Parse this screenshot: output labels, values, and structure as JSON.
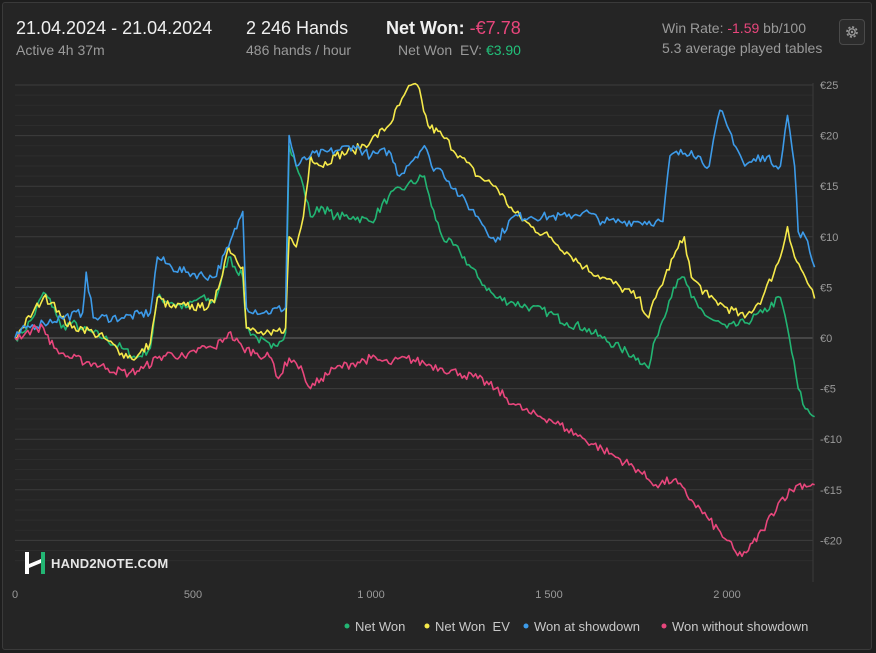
{
  "header": {
    "date_range": "21.04.2024 - 21.04.2024",
    "active_time": "Active 4h 37m",
    "hands_total": "2 246 Hands",
    "hands_rate": "486 hands / hour",
    "net_won_label": "Net Won:",
    "net_won_value": "-€7.78",
    "net_won_ev_label": "Net Won  EV:",
    "net_won_ev_value": "€3.90",
    "win_rate_label": "Win Rate:",
    "win_rate_value": "-1.59",
    "win_rate_unit": "bb/100",
    "avg_tables": "5.3 average played tables"
  },
  "logo": {
    "text": "HAND2NOTE.COM"
  },
  "colors": {
    "net_won": "#22b573",
    "net_won_ev": "#f5e94a",
    "won_at_showdown": "#3d9be9",
    "won_without_showdown": "#e8467c",
    "grid": "#3a3a3a",
    "zero_line": "#5a5a5a"
  },
  "chart_data": {
    "type": "line",
    "title": "",
    "xlabel": "",
    "ylabel": "",
    "xlim": [
      0,
      2246
    ],
    "ylim": [
      -22,
      25
    ],
    "x_ticks": [
      0,
      500,
      1000,
      1500,
      2000
    ],
    "x_tick_labels": [
      "0",
      "500",
      "1 000",
      "1 500",
      "2 000"
    ],
    "y_ticks": [
      25,
      20,
      15,
      10,
      5,
      0,
      -5,
      -10,
      -15,
      -20
    ],
    "y_tick_labels": [
      "€25",
      "€20",
      "€15",
      "€10",
      "€5",
      "€0",
      "-€5",
      "-€10",
      "-€15",
      "-€20"
    ],
    "legend_position": "bottom-right",
    "series": [
      {
        "name": "Net Won",
        "color_key": "net_won",
        "points": [
          [
            0,
            0
          ],
          [
            20,
            0.5
          ],
          [
            50,
            2
          ],
          [
            80,
            4.5
          ],
          [
            110,
            3
          ],
          [
            130,
            1
          ],
          [
            160,
            1.5
          ],
          [
            190,
            0.8
          ],
          [
            220,
            0.5
          ],
          [
            250,
            0
          ],
          [
            300,
            -1
          ],
          [
            340,
            -2
          ],
          [
            380,
            -1
          ],
          [
            400,
            4
          ],
          [
            440,
            3.5
          ],
          [
            480,
            3
          ],
          [
            520,
            4
          ],
          [
            560,
            3.5
          ],
          [
            600,
            8
          ],
          [
            640,
            6
          ],
          [
            650,
            1
          ],
          [
            680,
            0
          ],
          [
            720,
            -1
          ],
          [
            760,
            0.5
          ],
          [
            770,
            19
          ],
          [
            790,
            17
          ],
          [
            810,
            15
          ],
          [
            830,
            12
          ],
          [
            860,
            13
          ],
          [
            900,
            12
          ],
          [
            950,
            12
          ],
          [
            1000,
            11.5
          ],
          [
            1050,
            14
          ],
          [
            1100,
            15
          ],
          [
            1150,
            16
          ],
          [
            1170,
            13
          ],
          [
            1200,
            10
          ],
          [
            1250,
            8.5
          ],
          [
            1300,
            6
          ],
          [
            1350,
            4
          ],
          [
            1400,
            3.5
          ],
          [
            1450,
            3
          ],
          [
            1500,
            2.5
          ],
          [
            1550,
            1.5
          ],
          [
            1600,
            1
          ],
          [
            1650,
            0
          ],
          [
            1700,
            -1
          ],
          [
            1750,
            -2
          ],
          [
            1780,
            -3
          ],
          [
            1800,
            0
          ],
          [
            1850,
            5
          ],
          [
            1880,
            6
          ],
          [
            1900,
            4
          ],
          [
            1920,
            3
          ],
          [
            1950,
            2
          ],
          [
            2000,
            1
          ],
          [
            2050,
            1.5
          ],
          [
            2100,
            2.5
          ],
          [
            2150,
            4
          ],
          [
            2170,
            1
          ],
          [
            2200,
            -5
          ],
          [
            2220,
            -7
          ],
          [
            2246,
            -7.78
          ]
        ]
      },
      {
        "name": "Net Won  EV",
        "color_key": "net_won_ev",
        "points": [
          [
            0,
            0
          ],
          [
            20,
            1
          ],
          [
            50,
            2.5
          ],
          [
            80,
            4
          ],
          [
            110,
            3.5
          ],
          [
            130,
            2
          ],
          [
            160,
            1
          ],
          [
            190,
            1
          ],
          [
            220,
            0.5
          ],
          [
            250,
            0
          ],
          [
            300,
            -1.5
          ],
          [
            340,
            -2
          ],
          [
            380,
            -0.5
          ],
          [
            400,
            4
          ],
          [
            440,
            3
          ],
          [
            480,
            3.2
          ],
          [
            520,
            3
          ],
          [
            560,
            3.5
          ],
          [
            600,
            9
          ],
          [
            640,
            7
          ],
          [
            650,
            1
          ],
          [
            680,
            0.5
          ],
          [
            720,
            0.3
          ],
          [
            760,
            1
          ],
          [
            770,
            10
          ],
          [
            790,
            9
          ],
          [
            810,
            12
          ],
          [
            830,
            18
          ],
          [
            860,
            17
          ],
          [
            900,
            18
          ],
          [
            950,
            18.5
          ],
          [
            1000,
            19.5
          ],
          [
            1050,
            21
          ],
          [
            1080,
            23
          ],
          [
            1100,
            24.5
          ],
          [
            1130,
            25
          ],
          [
            1160,
            21
          ],
          [
            1200,
            20
          ],
          [
            1250,
            18
          ],
          [
            1300,
            16
          ],
          [
            1350,
            15
          ],
          [
            1400,
            12.5
          ],
          [
            1450,
            11
          ],
          [
            1500,
            10
          ],
          [
            1550,
            8.5
          ],
          [
            1600,
            7
          ],
          [
            1650,
            6
          ],
          [
            1700,
            5
          ],
          [
            1750,
            4
          ],
          [
            1780,
            2
          ],
          [
            1800,
            4
          ],
          [
            1850,
            8
          ],
          [
            1880,
            10
          ],
          [
            1900,
            6
          ],
          [
            1950,
            4
          ],
          [
            2000,
            3
          ],
          [
            2050,
            2
          ],
          [
            2100,
            4
          ],
          [
            2150,
            8
          ],
          [
            2170,
            11
          ],
          [
            2190,
            8
          ],
          [
            2220,
            6
          ],
          [
            2246,
            3.9
          ]
        ]
      },
      {
        "name": "Won at showdown",
        "color_key": "won_at_showdown",
        "points": [
          [
            0,
            0
          ],
          [
            30,
            1
          ],
          [
            80,
            1.5
          ],
          [
            130,
            2
          ],
          [
            190,
            2.5
          ],
          [
            200,
            6.5
          ],
          [
            220,
            2
          ],
          [
            300,
            2
          ],
          [
            380,
            2.5
          ],
          [
            400,
            8
          ],
          [
            440,
            7
          ],
          [
            480,
            6.5
          ],
          [
            560,
            6
          ],
          [
            600,
            9
          ],
          [
            640,
            12.5
          ],
          [
            650,
            3
          ],
          [
            700,
            2.5
          ],
          [
            760,
            3
          ],
          [
            770,
            20
          ],
          [
            790,
            17
          ],
          [
            830,
            18
          ],
          [
            900,
            18.5
          ],
          [
            950,
            19
          ],
          [
            1000,
            18
          ],
          [
            1050,
            18.5
          ],
          [
            1080,
            16
          ],
          [
            1100,
            17
          ],
          [
            1150,
            19
          ],
          [
            1170,
            17
          ],
          [
            1200,
            16.5
          ],
          [
            1250,
            14
          ],
          [
            1300,
            12
          ],
          [
            1350,
            9.5
          ],
          [
            1400,
            12
          ],
          [
            1450,
            12
          ],
          [
            1500,
            12
          ],
          [
            1550,
            12
          ],
          [
            1600,
            12.5
          ],
          [
            1650,
            11.5
          ],
          [
            1700,
            11.5
          ],
          [
            1750,
            11.5
          ],
          [
            1800,
            11.5
          ],
          [
            1820,
            11.5
          ],
          [
            1840,
            18
          ],
          [
            1900,
            18.5
          ],
          [
            1950,
            17
          ],
          [
            1980,
            22.5
          ],
          [
            2000,
            21
          ],
          [
            2050,
            17
          ],
          [
            2100,
            18
          ],
          [
            2150,
            17
          ],
          [
            2170,
            22
          ],
          [
            2190,
            17
          ],
          [
            2200,
            10.5
          ],
          [
            2220,
            10
          ],
          [
            2246,
            7
          ]
        ]
      },
      {
        "name": "Won without showdown",
        "color_key": "won_without_showdown",
        "points": [
          [
            0,
            0
          ],
          [
            30,
            0.5
          ],
          [
            60,
            1
          ],
          [
            80,
            1
          ],
          [
            110,
            -1
          ],
          [
            130,
            -1.5
          ],
          [
            160,
            -2
          ],
          [
            220,
            -2.5
          ],
          [
            260,
            -3
          ],
          [
            320,
            -3.5
          ],
          [
            360,
            -3
          ],
          [
            400,
            -2
          ],
          [
            440,
            -1.5
          ],
          [
            480,
            -2
          ],
          [
            520,
            -1
          ],
          [
            560,
            -1
          ],
          [
            600,
            0.5
          ],
          [
            640,
            -1
          ],
          [
            680,
            -1.5
          ],
          [
            720,
            -2
          ],
          [
            740,
            -4
          ],
          [
            770,
            -2
          ],
          [
            790,
            -2.5
          ],
          [
            810,
            -3.5
          ],
          [
            830,
            -5
          ],
          [
            860,
            -4
          ],
          [
            900,
            -3
          ],
          [
            950,
            -2.5
          ],
          [
            1000,
            -2
          ],
          [
            1050,
            -2.5
          ],
          [
            1100,
            -2
          ],
          [
            1150,
            -2.5
          ],
          [
            1200,
            -3
          ],
          [
            1250,
            -3.5
          ],
          [
            1300,
            -4
          ],
          [
            1350,
            -5
          ],
          [
            1400,
            -6.5
          ],
          [
            1450,
            -7.5
          ],
          [
            1500,
            -8
          ],
          [
            1550,
            -9
          ],
          [
            1600,
            -10
          ],
          [
            1650,
            -11
          ],
          [
            1700,
            -12
          ],
          [
            1750,
            -13
          ],
          [
            1780,
            -14
          ],
          [
            1800,
            -14.5
          ],
          [
            1850,
            -14
          ],
          [
            1900,
            -16
          ],
          [
            1950,
            -18
          ],
          [
            2000,
            -20
          ],
          [
            2030,
            -21.5
          ],
          [
            2060,
            -21
          ],
          [
            2100,
            -19
          ],
          [
            2150,
            -16
          ],
          [
            2200,
            -14.5
          ],
          [
            2246,
            -14.5
          ]
        ]
      }
    ]
  }
}
